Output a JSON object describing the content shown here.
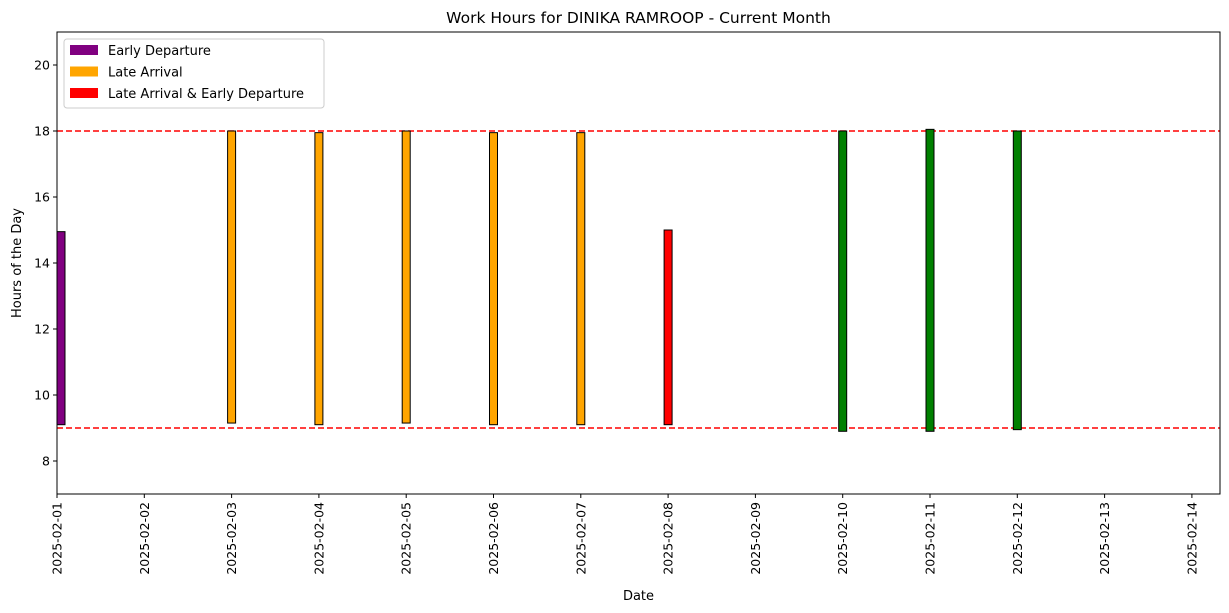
{
  "chart_data": {
    "type": "bar",
    "title": "Work Hours for DINIKA RAMROOP - Current Month",
    "xlabel": "Date",
    "ylabel": "Hours of the Day",
    "ylim": [
      7,
      21
    ],
    "xlim_dates": [
      "2025-02-01",
      "2025-02-14"
    ],
    "y_ticks": [
      8,
      10,
      12,
      14,
      16,
      18,
      20
    ],
    "x_tick_labels": [
      "2025-02-01",
      "2025-02-02",
      "2025-02-03",
      "2025-02-04",
      "2025-02-05",
      "2025-02-06",
      "2025-02-07",
      "2025-02-08",
      "2025-02-09",
      "2025-02-10",
      "2025-02-11",
      "2025-02-12",
      "2025-02-13",
      "2025-02-14"
    ],
    "reference_lines": [
      {
        "y": 9,
        "color": "#ff0000",
        "style": "dashed"
      },
      {
        "y": 18,
        "color": "#ff0000",
        "style": "dashed"
      }
    ],
    "bars": [
      {
        "date": "2025-02-01",
        "start": 9.1,
        "end": 14.95,
        "category": "Early Departure",
        "color": "#800080"
      },
      {
        "date": "2025-02-03",
        "start": 9.15,
        "end": 18.0,
        "category": "Late Arrival",
        "color": "#ffa500"
      },
      {
        "date": "2025-02-04",
        "start": 9.1,
        "end": 17.95,
        "category": "Late Arrival",
        "color": "#ffa500"
      },
      {
        "date": "2025-02-05",
        "start": 9.15,
        "end": 18.0,
        "category": "Late Arrival",
        "color": "#ffa500"
      },
      {
        "date": "2025-02-06",
        "start": 9.1,
        "end": 17.95,
        "category": "Late Arrival",
        "color": "#ffa500"
      },
      {
        "date": "2025-02-07",
        "start": 9.1,
        "end": 17.95,
        "category": "Late Arrival",
        "color": "#ffa500"
      },
      {
        "date": "2025-02-08",
        "start": 9.1,
        "end": 15.0,
        "category": "Late Arrival & Early Departure",
        "color": "#ff0000"
      },
      {
        "date": "2025-02-10",
        "start": 8.9,
        "end": 18.0,
        "category": "",
        "color": "#008000"
      },
      {
        "date": "2025-02-11",
        "start": 8.9,
        "end": 18.05,
        "category": "",
        "color": "#008000"
      },
      {
        "date": "2025-02-12",
        "start": 8.95,
        "end": 18.0,
        "category": "",
        "color": "#008000"
      }
    ],
    "legend": {
      "placement": "top-left",
      "entries": [
        {
          "label": "Early Departure",
          "color": "#800080"
        },
        {
          "label": "Late Arrival",
          "color": "#ffa500"
        },
        {
          "label": "Late Arrival & Early Departure",
          "color": "#ff0000"
        }
      ]
    },
    "grid": false
  }
}
